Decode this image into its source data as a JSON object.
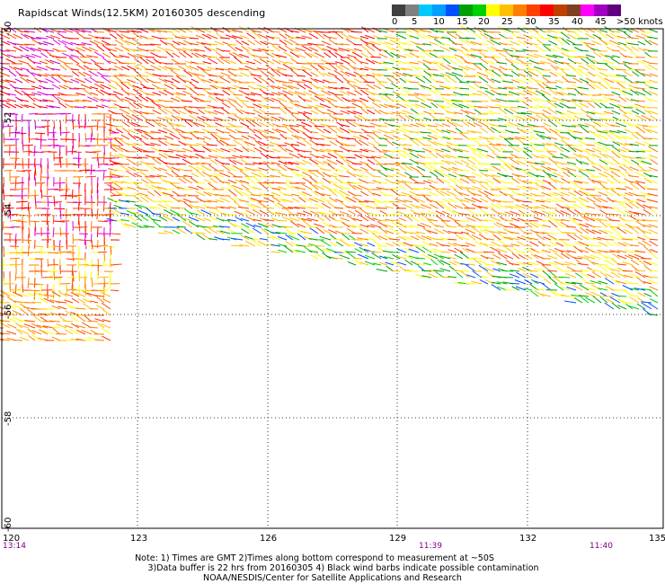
{
  "title": "Rapidscat Winds(12.5KM) 20160305 descending",
  "legend": {
    "labels": [
      "0",
      "5",
      "10",
      "15",
      "20",
      "25",
      "30",
      "35",
      "40",
      "45",
      ">50 knots"
    ],
    "colors": [
      "#404040",
      "#808080",
      "#00c8ff",
      "#00a0ff",
      "#0050ff",
      "#00a000",
      "#00d000",
      "#ffff00",
      "#ffc000",
      "#ff8000",
      "#ff4000",
      "#ff0000",
      "#c04000",
      "#804020",
      "#ff00ff",
      "#a000c0",
      "#600080"
    ]
  },
  "map": {
    "lat_labels": [
      "-50",
      "-52",
      "-54",
      "-56",
      "-58",
      "-60"
    ],
    "lon_labels": [
      "120",
      "123",
      "126",
      "129",
      "132",
      "135"
    ],
    "time_labels": [
      "13:14",
      "11:39",
      "11:40"
    ]
  },
  "notes": {
    "line1": "Note: 1) Times are GMT 2)Times along bottom correspond to measurement at ~50S",
    "line2": "3)Data buffer is 22 hrs from 20160305 4) Black wind barbs indicate possible contamination",
    "line3": "NOAA/NESDIS/Center for Satellite Applications and Research"
  }
}
